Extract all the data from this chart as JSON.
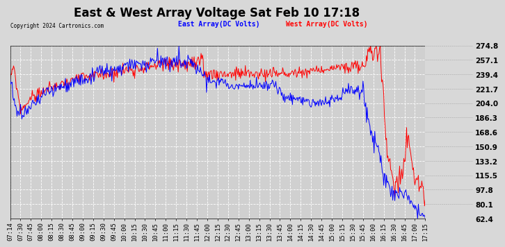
{
  "title": "East & West Array Voltage Sat Feb 10 17:18",
  "copyright": "Copyright 2024 Cartronics.com",
  "legend_east": "East Array(DC Volts)",
  "legend_west": "West Array(DC Volts)",
  "east_color": "blue",
  "west_color": "red",
  "bg_color": "#d8d8d8",
  "plot_bg_color": "#d0d0d0",
  "grid_color": "#ffffff",
  "ymin": 62.4,
  "ymax": 274.8,
  "yticks": [
    274.8,
    257.1,
    239.4,
    221.7,
    204.0,
    186.3,
    168.6,
    150.9,
    133.2,
    115.5,
    97.8,
    80.1,
    62.4
  ],
  "xtick_labels": [
    "07:14",
    "07:30",
    "07:45",
    "08:00",
    "08:15",
    "08:30",
    "08:45",
    "09:00",
    "09:15",
    "09:30",
    "09:45",
    "10:00",
    "10:15",
    "10:30",
    "10:45",
    "11:00",
    "11:15",
    "11:30",
    "11:45",
    "12:00",
    "12:15",
    "12:30",
    "12:45",
    "13:00",
    "13:15",
    "13:30",
    "13:45",
    "14:00",
    "14:15",
    "14:30",
    "14:45",
    "15:00",
    "15:15",
    "15:30",
    "15:45",
    "16:00",
    "16:15",
    "16:30",
    "16:45",
    "17:00",
    "17:15"
  ],
  "title_fontsize": 12,
  "tick_fontsize": 6.5,
  "ytick_fontsize": 7.5
}
